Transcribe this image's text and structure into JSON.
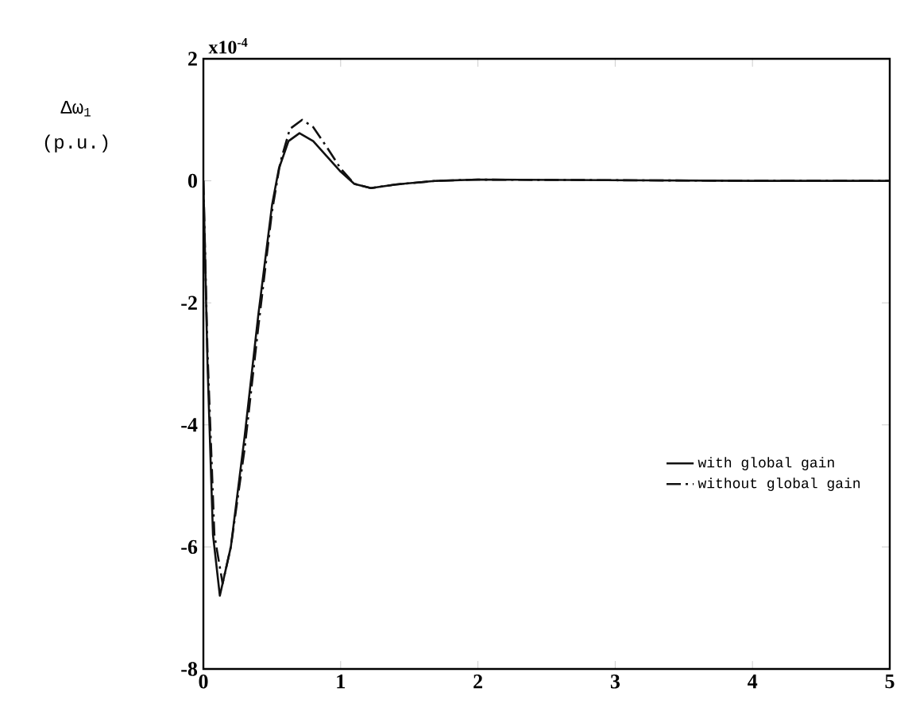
{
  "chart_data": {
    "type": "line",
    "ylabel": "Δω$_{1}$ (p.u.)",
    "annotations": [
      "x10$^{-4}$"
    ],
    "xlim": [
      0,
      5
    ],
    "ylim": [
      -8,
      2
    ],
    "xticks": [
      0,
      1,
      2,
      3,
      4,
      5
    ],
    "yticks": [
      -8,
      -6,
      -4,
      -2,
      0,
      2
    ],
    "legend": "bottom right",
    "grid": false,
    "series": [
      {
        "name": "with global gain",
        "color": "#111111",
        "line_style": "solid",
        "x": [
          0,
          0.03,
          0.07,
          0.12,
          0.2,
          0.3,
          0.4,
          0.5,
          0.55,
          0.62,
          0.7,
          0.8,
          0.9,
          1.0,
          1.1,
          1.22,
          1.4,
          1.7,
          2,
          3,
          4,
          5
        ],
        "values": [
          0,
          -3,
          -5.8,
          -6.8,
          -6.0,
          -4.2,
          -2.2,
          -0.4,
          0.2,
          0.65,
          0.78,
          0.65,
          0.4,
          0.15,
          -0.05,
          -0.12,
          -0.06,
          0.0,
          0.02,
          0.01,
          0,
          0
        ]
      },
      {
        "name": "without global gain",
        "color": "#111111",
        "line_style": "dashdot",
        "x": [
          0,
          0.03,
          0.08,
          0.14,
          0.2,
          0.3,
          0.4,
          0.5,
          0.56,
          0.63,
          0.72,
          0.8,
          0.9,
          1.0,
          1.1,
          1.22,
          1.4,
          1.7,
          2,
          3,
          4,
          5
        ],
        "values": [
          0,
          -2.8,
          -5.8,
          -6.6,
          -6.0,
          -4.4,
          -2.4,
          -0.5,
          0.3,
          0.85,
          1.0,
          0.88,
          0.55,
          0.2,
          -0.05,
          -0.12,
          -0.06,
          0.0,
          0.02,
          0.01,
          0,
          0
        ]
      }
    ]
  }
}
